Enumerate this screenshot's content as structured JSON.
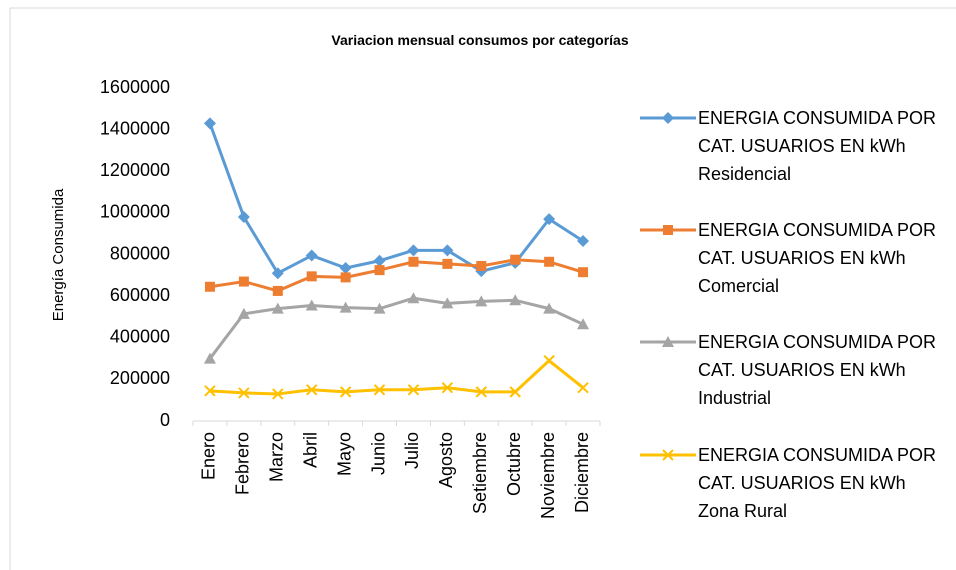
{
  "chart_data": {
    "type": "line",
    "title": "Variacion mensual consumos por categorías",
    "y_label": "Energía Consumida",
    "categories": [
      "Enero",
      "Febrero",
      "Marzo",
      "Abril",
      "Mayo",
      "Junio",
      "Julio",
      "Agosto",
      "Setiembre",
      "Octubre",
      "Noviembre",
      "Diciembre"
    ],
    "series": [
      {
        "name": "ENERGIA CONSUMIDA POR CAT. USUARIOS EN kWh Residencial",
        "color": "#5b9bd5",
        "marker": "diamond",
        "values": [
          1430000,
          980000,
          710000,
          795000,
          735000,
          770000,
          820000,
          820000,
          720000,
          760000,
          970000,
          865000
        ]
      },
      {
        "name": "ENERGIA CONSUMIDA POR CAT. USUARIOS EN kWh Comercial",
        "color": "#ed7d31",
        "marker": "square",
        "values": [
          645000,
          670000,
          625000,
          695000,
          690000,
          725000,
          765000,
          755000,
          745000,
          775000,
          765000,
          715000
        ]
      },
      {
        "name": "ENERGIA CONSUMIDA POR CAT. USUARIOS EN kWh Industrial",
        "color": "#a5a5a5",
        "marker": "triangle",
        "values": [
          300000,
          515000,
          540000,
          555000,
          545000,
          540000,
          590000,
          565000,
          575000,
          580000,
          540000,
          465000
        ]
      },
      {
        "name": "ENERGIA CONSUMIDA POR CAT. USUARIOS EN kWh Zona Rural",
        "color": "#ffc000",
        "marker": "x",
        "values": [
          145000,
          135000,
          130000,
          150000,
          140000,
          150000,
          150000,
          160000,
          140000,
          140000,
          290000,
          160000
        ]
      }
    ],
    "ylim": [
      0,
      1600000
    ],
    "yticks": [
      0,
      200000,
      400000,
      600000,
      800000,
      1000000,
      1200000,
      1400000,
      1600000
    ],
    "grid": false,
    "legend": "right"
  }
}
